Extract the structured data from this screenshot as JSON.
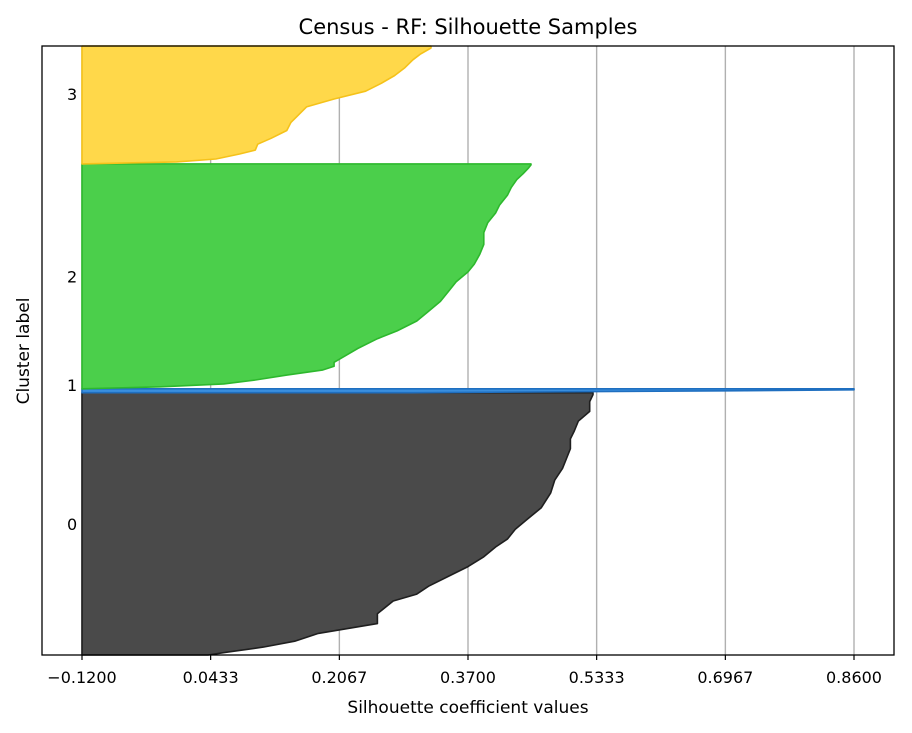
{
  "chart_data": {
    "type": "area",
    "title": "Census - RF: Silhouette Samples",
    "xlabel": "Silhouette coefficient values",
    "ylabel": "Cluster label",
    "xlim": [
      -0.12,
      0.86
    ],
    "x_ticks": [
      "−0.1200",
      "0.0433",
      "0.2067",
      "0.3700",
      "0.5333",
      "0.6967",
      "0.8600"
    ],
    "x_tick_values": [
      -0.12,
      0.0433,
      0.2067,
      0.37,
      0.5333,
      0.6967,
      0.86
    ],
    "grid": "vertical",
    "clusters": [
      {
        "label": "0",
        "color": "#4a4a4a",
        "edge_color": "#1f1f1f",
        "y_range": [
          0,
          267
        ],
        "profile": [
          [
            0,
            0.04
          ],
          [
            3,
            0.065
          ],
          [
            8,
            0.11
          ],
          [
            14,
            0.15
          ],
          [
            22,
            0.18
          ],
          [
            32,
            0.255
          ],
          [
            42,
            0.255
          ],
          [
            55,
            0.275
          ],
          [
            62,
            0.305
          ],
          [
            70,
            0.32
          ],
          [
            80,
            0.345
          ],
          [
            90,
            0.37
          ],
          [
            100,
            0.39
          ],
          [
            110,
            0.405
          ],
          [
            118,
            0.42
          ],
          [
            128,
            0.43
          ],
          [
            138,
            0.445
          ],
          [
            150,
            0.463
          ],
          [
            165,
            0.475
          ],
          [
            178,
            0.48
          ],
          [
            190,
            0.49
          ],
          [
            200,
            0.495
          ],
          [
            210,
            0.5
          ],
          [
            220,
            0.5
          ],
          [
            228,
            0.505
          ],
          [
            238,
            0.51
          ],
          [
            248,
            0.5245
          ],
          [
            258,
            0.5245
          ],
          [
            265,
            0.5287
          ],
          [
            267,
            0.5287
          ]
        ]
      },
      {
        "label": "1",
        "color": "#3a8fdf",
        "edge_color": "#1f6fc0",
        "y_range": [
          267,
          271
        ],
        "profile": [
          [
            267,
            0.3
          ],
          [
            269,
            0.7
          ],
          [
            270,
            0.86
          ],
          [
            271,
            0.86
          ]
        ]
      },
      {
        "label": "2",
        "color": "#4bcf4b",
        "edge_color": "#2db82d",
        "y_range": [
          271,
          500
        ],
        "profile": [
          [
            271,
            -0.12
          ],
          [
            273,
            -0.02
          ],
          [
            276,
            0.06
          ],
          [
            280,
            0.1
          ],
          [
            285,
            0.14
          ],
          [
            290,
            0.185
          ],
          [
            294,
            0.2
          ],
          [
            298,
            0.2
          ],
          [
            305,
            0.215
          ],
          [
            312,
            0.23
          ],
          [
            322,
            0.255
          ],
          [
            330,
            0.28
          ],
          [
            340,
            0.305
          ],
          [
            350,
            0.32
          ],
          [
            360,
            0.335
          ],
          [
            370,
            0.345
          ],
          [
            380,
            0.355
          ],
          [
            390,
            0.37
          ],
          [
            398,
            0.378
          ],
          [
            408,
            0.385
          ],
          [
            418,
            0.39
          ],
          [
            430,
            0.39
          ],
          [
            440,
            0.395
          ],
          [
            450,
            0.405
          ],
          [
            458,
            0.41
          ],
          [
            468,
            0.42
          ],
          [
            476,
            0.425
          ],
          [
            484,
            0.432
          ],
          [
            490,
            0.44
          ],
          [
            496,
            0.447
          ],
          [
            499,
            0.45
          ],
          [
            500,
            0.45
          ]
        ]
      },
      {
        "label": "3",
        "color": "#ffd84a",
        "edge_color": "#f5c21a",
        "y_range": [
          500,
          620
        ],
        "profile": [
          [
            500,
            -0.12
          ],
          [
            502,
            0.0
          ],
          [
            505,
            0.05
          ],
          [
            510,
            0.08
          ],
          [
            514,
            0.1
          ],
          [
            520,
            0.103
          ],
          [
            526,
            0.12
          ],
          [
            534,
            0.14
          ],
          [
            542,
            0.145
          ],
          [
            550,
            0.155
          ],
          [
            558,
            0.165
          ],
          [
            566,
            0.2
          ],
          [
            574,
            0.24
          ],
          [
            582,
            0.26
          ],
          [
            590,
            0.277
          ],
          [
            598,
            0.29
          ],
          [
            606,
            0.3
          ],
          [
            612,
            0.31
          ],
          [
            618,
            0.323
          ],
          [
            620,
            0.323
          ]
        ]
      }
    ]
  }
}
